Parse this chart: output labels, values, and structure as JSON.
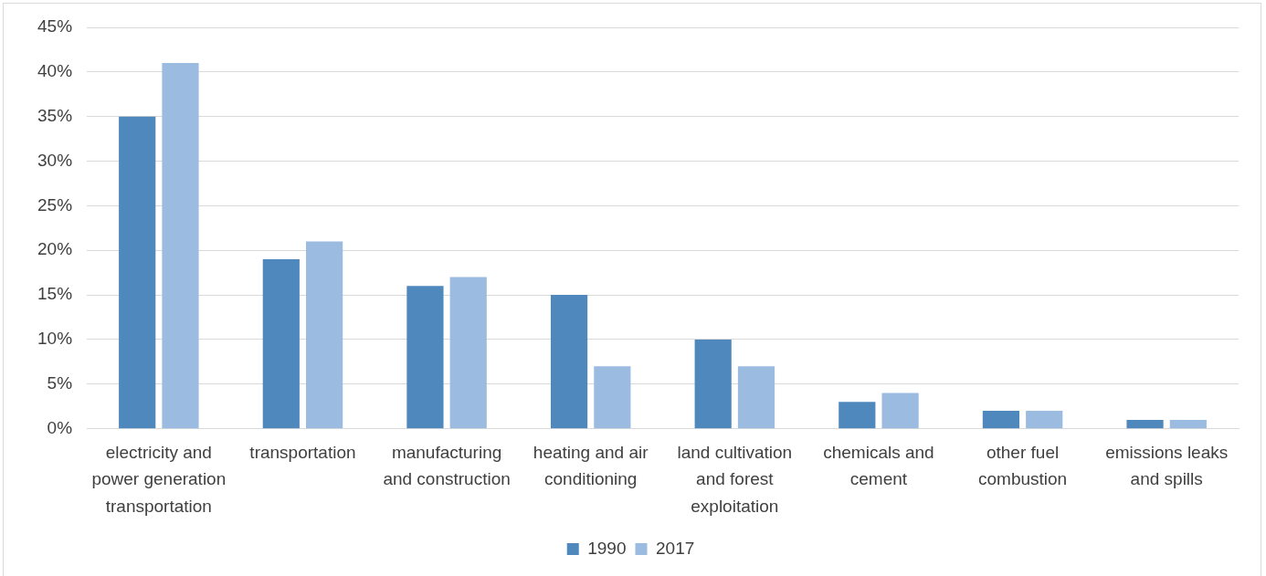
{
  "chart_data": {
    "type": "bar",
    "categories": [
      "electricity and power generation transportation",
      "transportation",
      "manufacturing and construction",
      "heating and air conditioning",
      "land cultivation and forest exploitation",
      "chemicals and cement",
      "other fuel combustion",
      "emissions leaks and spills"
    ],
    "series": [
      {
        "name": "1990",
        "color": "#4f88bd",
        "values": [
          35,
          19,
          16,
          15,
          10,
          3,
          2,
          1
        ]
      },
      {
        "name": "2017",
        "color": "#9bbbe0",
        "values": [
          41,
          21,
          17,
          7,
          7,
          4,
          2,
          1
        ]
      }
    ],
    "ylim": [
      0,
      45
    ],
    "yticks": [
      {
        "value": 0,
        "label": "0%"
      },
      {
        "value": 5,
        "label": "5%"
      },
      {
        "value": 10,
        "label": "10%"
      },
      {
        "value": 15,
        "label": "15%"
      },
      {
        "value": 20,
        "label": "20%"
      },
      {
        "value": 25,
        "label": "25%"
      },
      {
        "value": 30,
        "label": "30%"
      },
      {
        "value": 35,
        "label": "35%"
      },
      {
        "value": 40,
        "label": "40%"
      },
      {
        "value": 45,
        "label": "45%"
      }
    ],
    "grid": "y",
    "legend": "bottom"
  }
}
